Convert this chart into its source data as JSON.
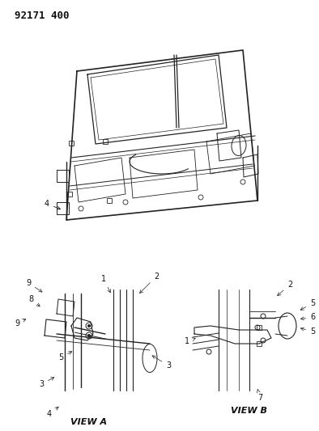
{
  "title": "92171 400",
  "bg_color": "#ffffff",
  "line_color": "#222222",
  "text_color": "#111111",
  "title_fontsize": 9,
  "label_fontsize": 7,
  "view_a_label": "VIEW A",
  "view_b_label": "VIEW B",
  "figsize": [
    3.94,
    5.33
  ],
  "dpi": 100
}
